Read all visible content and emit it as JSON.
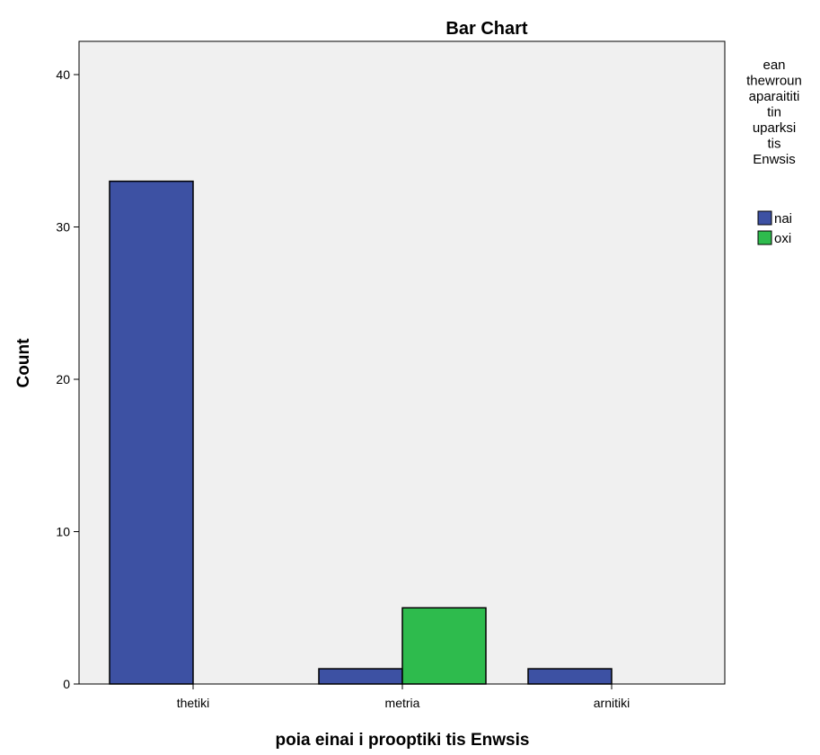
{
  "chart_data": {
    "type": "bar",
    "title": "Bar Chart",
    "xlabel": "poia einai i prooptiki tis Enwsis",
    "ylabel": "Count",
    "categories": [
      "thetiki",
      "metria",
      "arnitiki"
    ],
    "series": [
      {
        "name": "nai",
        "color": "#3d51a3",
        "values": [
          33,
          1,
          1
        ]
      },
      {
        "name": "oxi",
        "color": "#2ebb4d",
        "values": [
          0,
          5,
          0
        ]
      }
    ],
    "ylim": [
      0,
      40
    ],
    "yticks": [
      0,
      10,
      20,
      30,
      40
    ],
    "grid": false,
    "legend": {
      "title_lines": [
        "ean",
        "thewroun",
        "aparaititi",
        "tin",
        "uparksi",
        "tis",
        "Enwsis"
      ],
      "placement": "right"
    },
    "plot_background": "#f0f0f0"
  }
}
